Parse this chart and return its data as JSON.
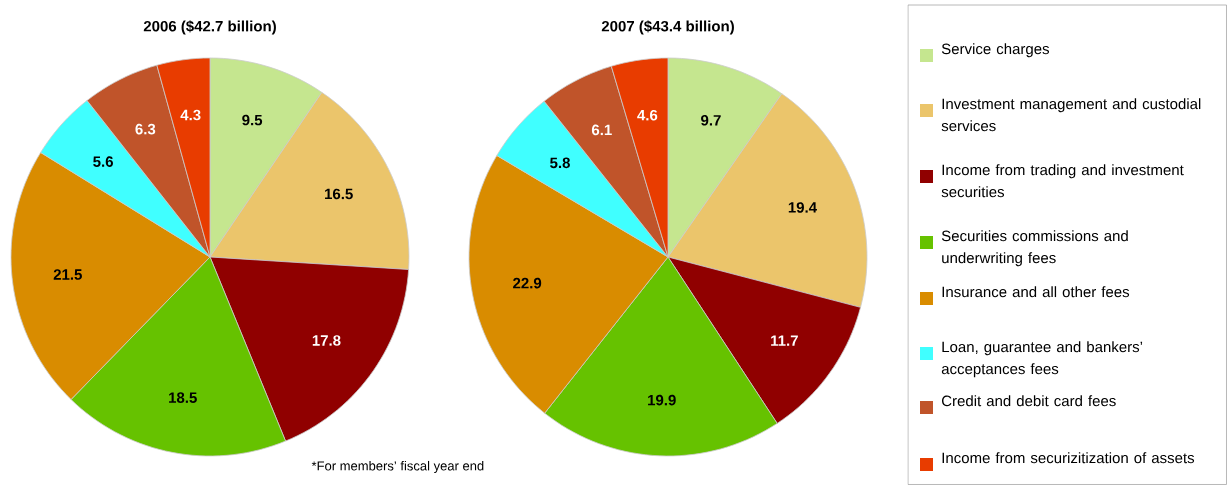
{
  "chart_data": {
    "type": "pie",
    "categories": [
      "Service charges",
      "Investment management and custodial services",
      "Income from trading and investment securities",
      "Securities commissions and underwriting fees",
      "Insurance and all other fees",
      "Loan, guarantee and bankers’ acceptances fees",
      "Credit and debit card fees",
      "Income from securizitization of assets"
    ],
    "colors": [
      "#c5e68f",
      "#ebc56b",
      "#900000",
      "#66c200",
      "#d98c00",
      "#40ffff",
      "#c0542a",
      "#e83c00"
    ],
    "series": [
      {
        "name": "2006 ($42.7 billion)",
        "values": [
          9.5,
          16.5,
          17.8,
          18.5,
          21.5,
          5.6,
          6.3,
          4.3
        ]
      },
      {
        "name": "2007 ($43.4 billion)",
        "values": [
          9.7,
          19.4,
          11.7,
          19.9,
          22.9,
          5.8,
          6.1,
          4.6
        ]
      }
    ],
    "data_labels": true,
    "legend": "right",
    "annotations": [
      "*For members’ fiscal year end"
    ]
  }
}
